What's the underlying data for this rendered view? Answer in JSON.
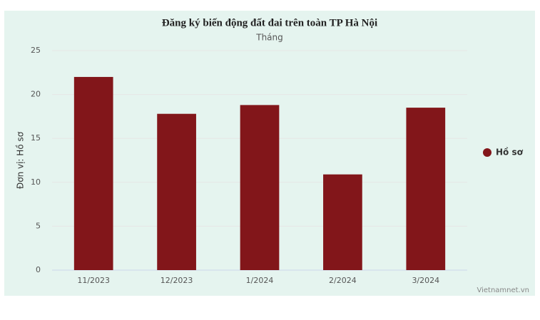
{
  "chart_data": {
    "type": "bar",
    "title": "Đăng ký biến động đất đai trên toàn TP Hà Nội",
    "subtitle": "Tháng",
    "y_label": "Đơn vị: Hồ sơ",
    "categories": [
      "11/2023",
      "12/2023",
      "1/2024",
      "2/2024",
      "3/2024"
    ],
    "series": [
      {
        "name": "Hồ sơ",
        "color": "#82161a",
        "values": [
          22.0,
          17.8,
          18.8,
          10.9,
          18.5
        ]
      }
    ],
    "ylim": [
      0,
      25
    ],
    "yticks": [
      0,
      5,
      10,
      15,
      20,
      25
    ],
    "grid": true,
    "legend": "right",
    "credit": "Vietnamnet.vn"
  }
}
